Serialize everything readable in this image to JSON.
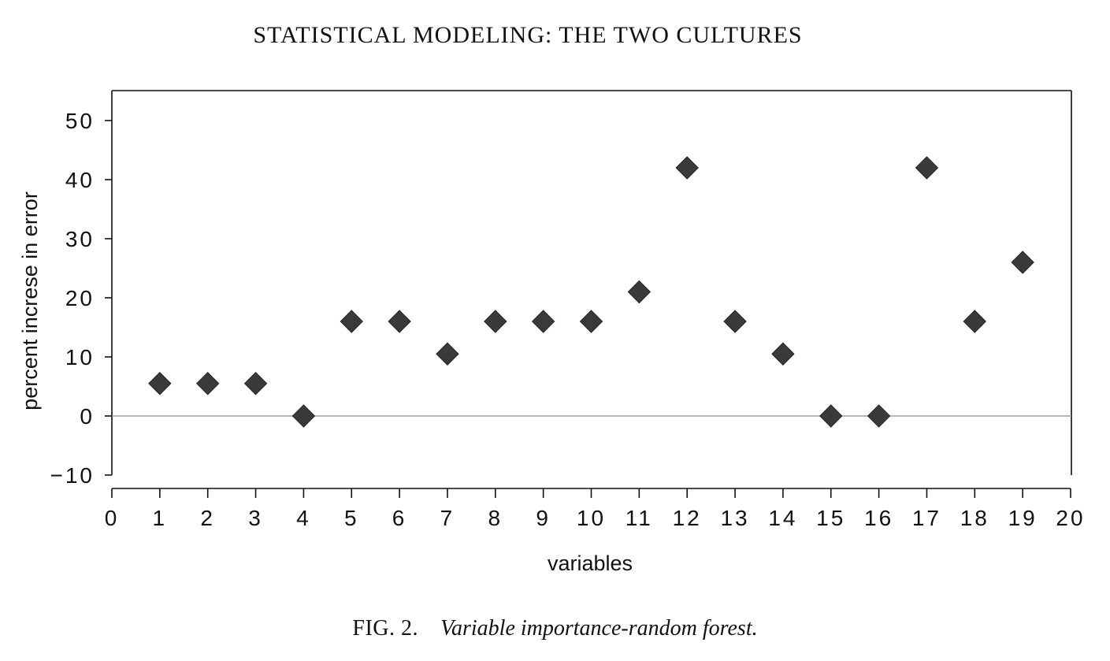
{
  "page": {
    "running_head": "STATISTICAL MODELING: THE TWO CULTURES",
    "caption_label": "FIG. 2.",
    "caption_text": "Variable importance-random forest."
  },
  "chart_data": {
    "type": "scatter",
    "title": "",
    "xlabel": "variables",
    "ylabel": "percent increse in error",
    "xlim": [
      0,
      20
    ],
    "ylim": [
      -10,
      50
    ],
    "x_ticks": [
      "0",
      "1",
      "2",
      "3",
      "4",
      "5",
      "6",
      "7",
      "8",
      "9",
      "10",
      "11",
      "12",
      "13",
      "14",
      "15",
      "16",
      "17",
      "18",
      "19",
      "20"
    ],
    "y_ticks": [
      "−10",
      "0",
      "10",
      "20",
      "30",
      "40",
      "50"
    ],
    "reference_line_y": 0,
    "marker": "diamond",
    "marker_color": "#3a3a3a",
    "grid": false,
    "x": [
      1,
      2,
      3,
      4,
      5,
      6,
      7,
      8,
      9,
      10,
      11,
      12,
      13,
      14,
      15,
      16,
      17,
      18,
      19
    ],
    "y": [
      5.5,
      5.5,
      5.5,
      0,
      16,
      16,
      10.5,
      16,
      16,
      16,
      21,
      42,
      16,
      10.5,
      0,
      0,
      42,
      16,
      26
    ]
  }
}
